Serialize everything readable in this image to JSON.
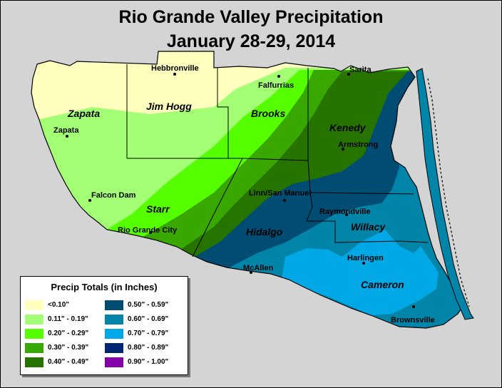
{
  "title": {
    "line1": "Rio Grande Valley Precipitation",
    "line2": "January 28-29, 2014"
  },
  "legend": {
    "title": "Precip Totals (in Inches)",
    "items": [
      {
        "label": "<0.10\"",
        "color": "#ffffbe"
      },
      {
        "label": "0.11\" - 0.19\"",
        "color": "#a3ff73"
      },
      {
        "label": "0.20\" - 0.29\"",
        "color": "#55ff00"
      },
      {
        "label": "0.30\" - 0.39\"",
        "color": "#38a800"
      },
      {
        "label": "0.40\" - 0.49\"",
        "color": "#267300"
      },
      {
        "label": "0.50\" - 0.59\"",
        "color": "#004c73"
      },
      {
        "label": "0.60\" - 0.69\"",
        "color": "#0084a8"
      },
      {
        "label": "0.70\" - 0.79\"",
        "color": "#00a9e6"
      },
      {
        "label": "0.80\" - 0.89\"",
        "color": "#002673"
      },
      {
        "label": "0.90\" - 1.00\"",
        "color": "#8400a8"
      }
    ]
  },
  "counties": {
    "zapata": "Zapata",
    "jim_hogg": "Jim Hogg",
    "brooks": "Brooks",
    "kenedy": "Kenedy",
    "starr": "Starr",
    "hidalgo": "Hidalgo",
    "willacy": "Willacy",
    "cameron": "Cameron"
  },
  "cities": {
    "hebbronville": "Hebbronville",
    "falfurrias": "Falfurrias",
    "sarita": "Sarita",
    "zapata": "Zapata",
    "armstrong": "Armstrong",
    "falcon_dam": "Falcon Dam",
    "linn_san_manuel": "Linn/San Manuel",
    "raymondville": "Raymondville",
    "rio_grande_city": "Rio Grande City",
    "mcallen": "McAllen",
    "harlingen": "Harlingen",
    "brownsville": "Brownsville"
  }
}
